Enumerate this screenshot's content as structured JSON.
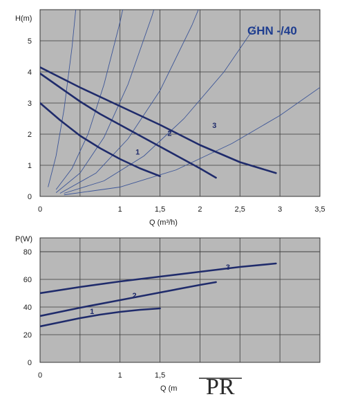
{
  "chart_data": [
    {
      "type": "line",
      "title": "GHN -/40",
      "xlabel": "Q (m³/h)",
      "ylabel": "H(m)",
      "xlim": [
        0,
        3.5
      ],
      "ylim": [
        0,
        6
      ],
      "x_ticks": [
        "0",
        "1",
        "1,5",
        "2",
        "2,5",
        "3",
        "3,5"
      ],
      "x_tick_values": [
        0,
        1,
        1.5,
        2,
        2.5,
        3,
        3.5
      ],
      "y_ticks": [
        "0",
        "1",
        "2",
        "3",
        "4",
        "5"
      ],
      "y_tick_values": [
        0,
        1,
        2,
        3,
        4,
        5
      ],
      "grid": true,
      "series": [
        {
          "name": "1",
          "color": "#1f2b6b",
          "x": [
            0,
            0.25,
            0.5,
            0.75,
            1.0,
            1.25,
            1.5
          ],
          "y": [
            3.0,
            2.45,
            1.95,
            1.55,
            1.2,
            0.9,
            0.65
          ]
        },
        {
          "name": "2",
          "color": "#1f2b6b",
          "x": [
            0,
            0.25,
            0.5,
            0.75,
            1.0,
            1.25,
            1.5,
            1.75,
            2.0,
            2.2
          ],
          "y": [
            3.95,
            3.5,
            3.05,
            2.65,
            2.3,
            1.95,
            1.6,
            1.25,
            0.9,
            0.6
          ]
        },
        {
          "name": "3",
          "color": "#1f2b6b",
          "x": [
            0,
            0.5,
            1.0,
            1.5,
            2.0,
            2.5,
            2.95
          ],
          "y": [
            4.15,
            3.5,
            2.9,
            2.3,
            1.65,
            1.1,
            0.75
          ]
        }
      ],
      "system_curves": [
        {
          "x": [
            0.1,
            0.2,
            0.3,
            0.4,
            0.5,
            0.55
          ],
          "y": [
            0.3,
            1.3,
            2.8,
            4.8,
            7.4,
            9
          ]
        },
        {
          "x": [
            0.2,
            0.4,
            0.6,
            0.8,
            1.0,
            1.2
          ],
          "y": [
            0.22,
            0.9,
            2.0,
            3.6,
            5.6,
            8
          ]
        },
        {
          "x": [
            0.2,
            0.5,
            0.8,
            1.1,
            1.4,
            1.7
          ],
          "y": [
            0.12,
            0.75,
            1.9,
            3.6,
            5.8,
            8.4
          ]
        },
        {
          "x": [
            0.25,
            0.7,
            1.1,
            1.5,
            1.9,
            2.3
          ],
          "y": [
            0.1,
            0.75,
            1.85,
            3.4,
            5.5,
            8
          ]
        },
        {
          "x": [
            0.3,
            0.8,
            1.3,
            1.8,
            2.3,
            2.7
          ],
          "y": [
            0.1,
            0.5,
            1.3,
            2.5,
            4.0,
            5.5
          ]
        },
        {
          "x": [
            0.3,
            1.0,
            1.7,
            2.4,
            3.0,
            3.5
          ],
          "y": [
            0.05,
            0.3,
            0.85,
            1.7,
            2.6,
            3.5
          ]
        }
      ],
      "annotations": [
        {
          "text": "1",
          "x": 1.22,
          "y": 1.35
        },
        {
          "text": "2",
          "x": 1.62,
          "y": 1.95
        },
        {
          "text": "3",
          "x": 2.18,
          "y": 2.2
        }
      ]
    },
    {
      "type": "line",
      "xlabel": "Q (m³/h)",
      "ylabel": "P(W)",
      "xlim": [
        0,
        3.5
      ],
      "ylim": [
        0,
        90
      ],
      "x_ticks": [
        "0",
        "1",
        "1,5"
      ],
      "x_tick_values": [
        0,
        1,
        1.5
      ],
      "y_ticks": [
        "0",
        "20",
        "40",
        "60",
        "80"
      ],
      "y_tick_values": [
        0,
        20,
        40,
        60,
        80
      ],
      "grid": true,
      "series": [
        {
          "name": "1",
          "color": "#1f2b6b",
          "x": [
            0,
            0.25,
            0.5,
            0.75,
            1.0,
            1.25,
            1.5
          ],
          "y": [
            26,
            29,
            32,
            34.5,
            36.5,
            38,
            39
          ]
        },
        {
          "name": "2",
          "color": "#1f2b6b",
          "x": [
            0,
            0.5,
            1.0,
            1.5,
            2.0,
            2.2
          ],
          "y": [
            33.5,
            39.5,
            45,
            50.5,
            56,
            58
          ]
        },
        {
          "name": "3",
          "color": "#1f2b6b",
          "x": [
            0,
            0.5,
            1.0,
            1.5,
            2.0,
            2.5,
            2.95
          ],
          "y": [
            50,
            54.5,
            58.5,
            62,
            65.5,
            69,
            71.5
          ]
        }
      ],
      "annotations": [
        {
          "text": "1",
          "x": 0.65,
          "y": 35
        },
        {
          "text": "2",
          "x": 1.18,
          "y": 46.5
        },
        {
          "text": "3",
          "x": 2.35,
          "y": 67
        }
      ]
    }
  ],
  "logo": {
    "text": "PR"
  }
}
